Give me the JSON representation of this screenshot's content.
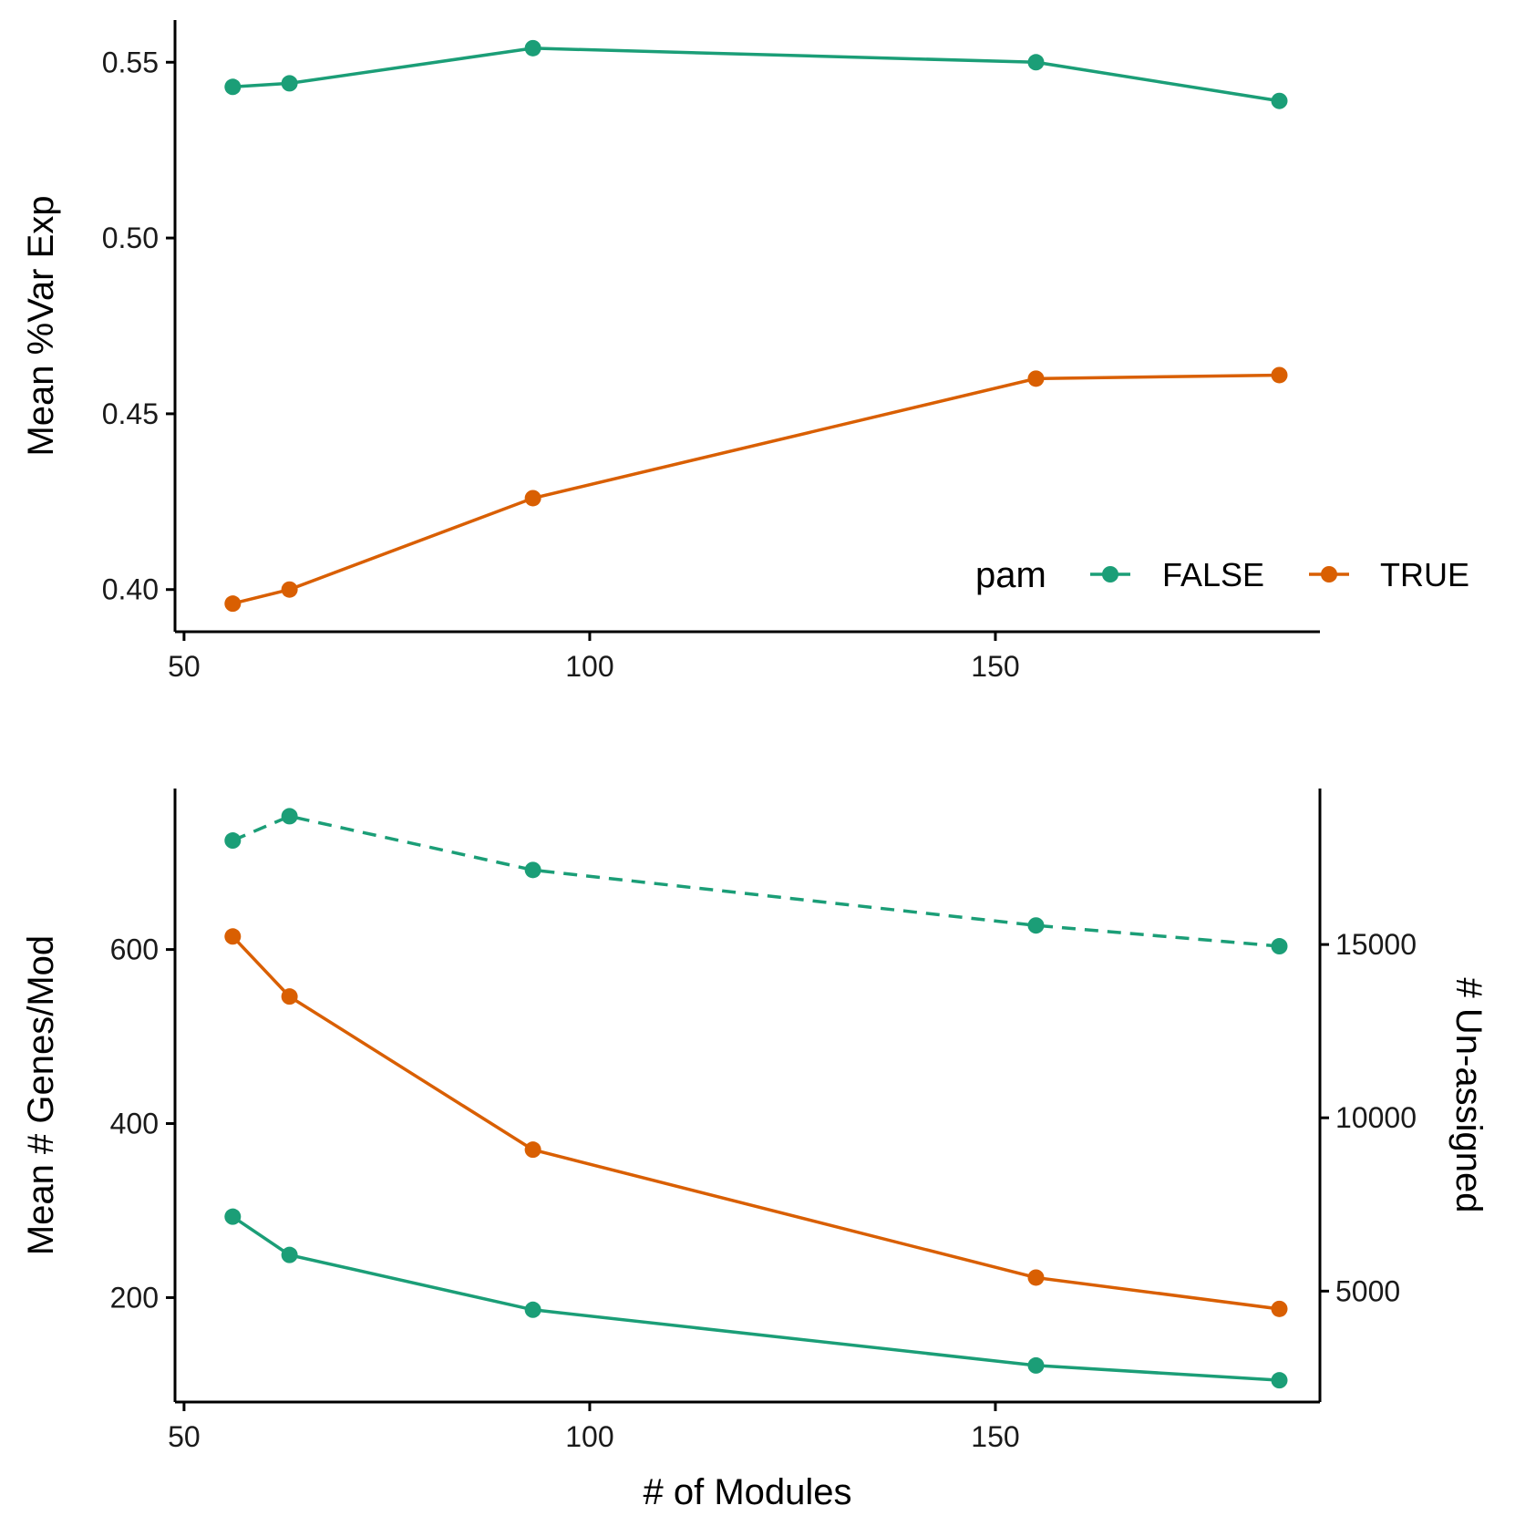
{
  "colors": {
    "false": "#1b9e77",
    "true": "#d95f02",
    "axis": "#000000"
  },
  "legend": {
    "title": "pam",
    "entries": [
      {
        "label": "FALSE",
        "color_key": "false"
      },
      {
        "label": "TRUE",
        "color_key": "true"
      }
    ],
    "placement": "bottom-right inside top panel"
  },
  "chart_data": [
    {
      "type": "line",
      "panel": "top",
      "xlabel": "",
      "ylabel": "Mean %Var Exp",
      "xlim": [
        49,
        190
      ],
      "ylim": [
        0.388,
        0.562
      ],
      "xticks": [
        50,
        100,
        150
      ],
      "xtick_labels": [
        "50",
        "100",
        "150"
      ],
      "yticks": [
        0.4,
        0.45,
        0.5,
        0.55
      ],
      "ytick_labels": [
        "0.40",
        "0.45",
        "0.50",
        "0.55"
      ],
      "grid": false,
      "series": [
        {
          "name": "FALSE",
          "color_key": "false",
          "dash": false,
          "x": [
            56,
            63,
            93,
            155,
            185
          ],
          "y": [
            0.543,
            0.544,
            0.554,
            0.55,
            0.539
          ]
        },
        {
          "name": "TRUE",
          "color_key": "true",
          "dash": false,
          "x": [
            56,
            63,
            93,
            155,
            185
          ],
          "y": [
            0.396,
            0.4,
            0.426,
            0.46,
            0.461
          ]
        }
      ]
    },
    {
      "type": "line",
      "panel": "bottom",
      "xlabel": "# of Modules",
      "ylabel": "Mean # Genes/Mod",
      "y2label": "# Un-assigned",
      "xlim": [
        49,
        190
      ],
      "ylim": [
        80,
        785
      ],
      "y2lim": [
        1800,
        19500
      ],
      "xticks": [
        50,
        100,
        150
      ],
      "xtick_labels": [
        "50",
        "100",
        "150"
      ],
      "yticks": [
        200,
        400,
        600
      ],
      "ytick_labels": [
        "200",
        "400",
        "600"
      ],
      "y2ticks": [
        5000,
        10000,
        15000
      ],
      "y2tick_labels": [
        "5000",
        "10000",
        "15000"
      ],
      "grid": false,
      "series": [
        {
          "name": "FALSE",
          "color_key": "false",
          "dash": false,
          "axis": "left",
          "x": [
            56,
            63,
            93,
            155,
            185
          ],
          "y": [
            293,
            249,
            186,
            122,
            105
          ]
        },
        {
          "name": "TRUE",
          "color_key": "true",
          "dash": false,
          "axis": "left",
          "x": [
            56,
            63,
            93,
            155,
            185
          ],
          "y": [
            615,
            546,
            370,
            223,
            187
          ]
        },
        {
          "name": "FALSE",
          "color_key": "false",
          "dash": true,
          "axis": "right",
          "x": [
            56,
            63,
            93,
            155,
            185
          ],
          "y": [
            18000,
            18700,
            17150,
            15550,
            14950
          ]
        }
      ]
    }
  ]
}
